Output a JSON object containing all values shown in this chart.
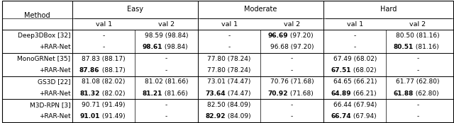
{
  "figsize": [
    6.4,
    1.74
  ],
  "dpi": 100,
  "col_group_labels": [
    "Easy",
    "Moderate",
    "Hard"
  ],
  "sub_labels": [
    "val 1",
    "val 2",
    "val 1",
    "val 2",
    "val 1",
    "val 2"
  ],
  "rows": [
    {
      "method": "Deep3DBox [32]",
      "rar": "+RAR-Net",
      "data": [
        [
          "-",
          "98.59",
          "(98.84)",
          "-",
          "96.69",
          "(97.20)",
          "-",
          "80.50",
          "(81.16)"
        ],
        [
          "-",
          "98.61",
          "(98.84)",
          "-",
          "96.68",
          "(97.20)",
          "-",
          "80.51",
          "(81.16)"
        ]
      ],
      "bold_num": [
        [
          false,
          false,
          false,
          false,
          true,
          false,
          false,
          false,
          false
        ],
        [
          false,
          true,
          false,
          false,
          false,
          false,
          false,
          true,
          false
        ]
      ]
    },
    {
      "method": "MonoGRNet [35]",
      "rar": "+RAR-Net",
      "data": [
        [
          "87.83",
          "(88.17)",
          "-",
          "77.80",
          "(78.24)",
          "-",
          "67.49",
          "(68.02)",
          "-"
        ],
        [
          "87.86",
          "(88.17)",
          "-",
          "77.80",
          "(78.24)",
          "-",
          "67.51",
          "(68.02)",
          "-"
        ]
      ],
      "bold_num": [
        [
          false,
          false,
          false,
          false,
          false,
          false,
          false,
          false,
          false
        ],
        [
          true,
          false,
          false,
          false,
          false,
          false,
          true,
          false,
          false
        ]
      ]
    },
    {
      "method": "GS3D [22]",
      "rar": "+RAR-Net",
      "data": [
        [
          "81.08",
          "(82.02)",
          "81.02",
          "(81.66)",
          "73.01",
          "(74.47)",
          "70.76",
          "(71.68)",
          "64.65",
          "(66.21)",
          "61.77",
          "(62.80)"
        ],
        [
          "81.32",
          "(82.02)",
          "81.21",
          "(81.66)",
          "73.64",
          "(74.47)",
          "70.92",
          "(71.68)",
          "64.89",
          "(66.21)",
          "61.88",
          "(62.80)"
        ]
      ],
      "bold_num": [
        [
          false,
          false,
          false,
          false,
          false,
          false,
          false,
          false,
          false,
          false,
          false,
          false
        ],
        [
          true,
          false,
          true,
          false,
          true,
          false,
          true,
          false,
          true,
          false,
          true,
          false
        ]
      ]
    },
    {
      "method": "M3D-RPN [3]",
      "rar": "+RAR-Net",
      "data": [
        [
          "90.71",
          "(91.49)",
          "-",
          "82.50",
          "(84.09)",
          "-",
          "66.44",
          "(67.94)",
          "-"
        ],
        [
          "91.01",
          "(91.49)",
          "-",
          "82.92",
          "(84.09)",
          "-",
          "66.74",
          "(67.94)",
          "-"
        ]
      ],
      "bold_num": [
        [
          false,
          false,
          false,
          false,
          false,
          false,
          false,
          false,
          false
        ],
        [
          true,
          false,
          false,
          true,
          false,
          false,
          true,
          false,
          false
        ]
      ]
    }
  ],
  "cells": {
    "row0": {
      "r0": {
        "c1": [
          "-"
        ],
        "c2": [
          "98.59 (98.84)"
        ],
        "c3": [
          "-"
        ],
        "c4": [
          "96.69 (97.20)"
        ],
        "c5": [
          "-"
        ],
        "c6": [
          "80.50 (81.16)"
        ]
      },
      "r1": {
        "c1": [
          "-"
        ],
        "c2": [
          "98.61 (98.84)"
        ],
        "c3": [
          "-"
        ],
        "c4": [
          "96.68 (97.20)"
        ],
        "c5": [
          "-"
        ],
        "c6": [
          "80.51 (81.16)"
        ]
      }
    }
  }
}
